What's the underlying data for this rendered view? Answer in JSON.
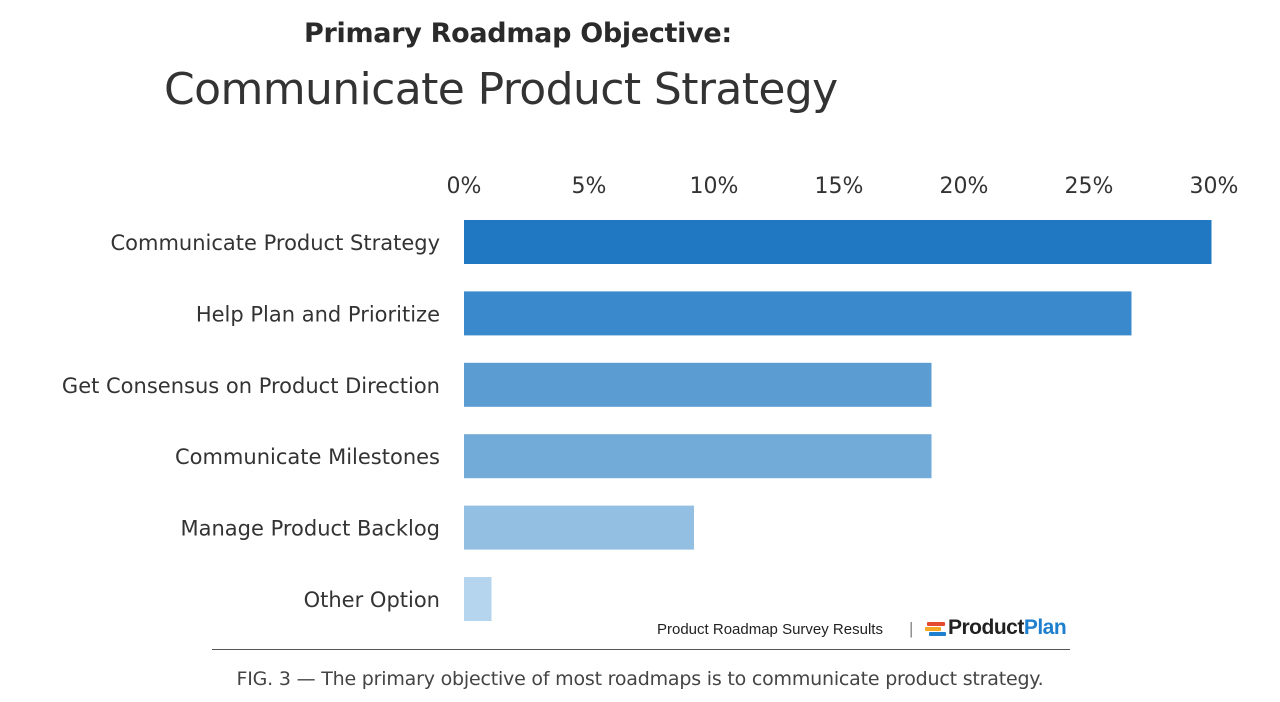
{
  "chart_data": {
    "type": "bar",
    "orientation": "horizontal",
    "title": "Primary Roadmap Objective:",
    "subtitle": "Communicate Product Strategy",
    "categories": [
      "Communicate Product Strategy",
      "Help Plan and Prioritize",
      "Get Consensus on Product Direction",
      "Communicate Milestones",
      "Manage Product Backlog",
      "Other Option"
    ],
    "values": [
      29.9,
      26.7,
      18.7,
      18.7,
      9.2,
      1.1
    ],
    "xlim": [
      0,
      30
    ],
    "x_ticks": [
      0,
      5,
      10,
      15,
      20,
      25,
      30
    ],
    "x_tick_labels": [
      "0%",
      "5%",
      "10%",
      "15%",
      "20%",
      "25%",
      "30%"
    ],
    "x_axis_position": "top",
    "grid": false,
    "legend": "none",
    "bar_colors": [
      "#2077c2",
      "#3a89cc",
      "#5b9dd3",
      "#72aad8",
      "#93c0e2",
      "#b5d5ee"
    ]
  },
  "footer": {
    "source": "Product Roadmap Survey Results",
    "separator": "|",
    "logo_product": "Product",
    "logo_plan": "Plan",
    "logo_product_color": "#222222",
    "logo_plan_color": "#1e7fcf",
    "logo_mark_colors": [
      "#e64a2e",
      "#f5a623",
      "#1e7fcf"
    ]
  },
  "caption": "FIG. 3 — The primary objective of most roadmaps is to communicate product strategy."
}
